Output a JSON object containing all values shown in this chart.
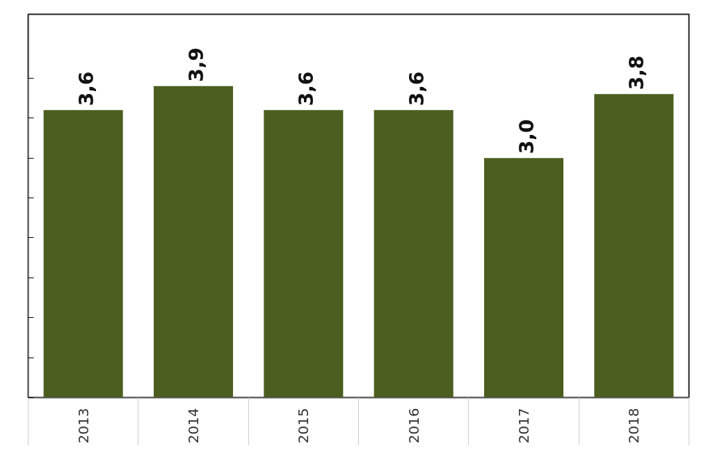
{
  "chart_data": {
    "type": "bar",
    "categories": [
      "2013",
      "2014",
      "2015",
      "2016",
      "2017",
      "2018"
    ],
    "values": [
      3.6,
      3.9,
      3.6,
      3.6,
      3.0,
      3.8
    ],
    "value_labels": [
      "3,6",
      "3,9",
      "3,6",
      "3,6",
      "3,0",
      "3,8"
    ],
    "color": "#4b5e1f",
    "ylim": [
      0,
      4
    ],
    "yticks": [
      {
        "value": 0,
        "label": null
      },
      {
        "value": 0.5,
        "label": null
      },
      {
        "value": 1,
        "label": null
      },
      {
        "value": 1.5,
        "label": null
      },
      {
        "value": 2,
        "label": null
      },
      {
        "value": 2.5,
        "label": null
      },
      {
        "value": 3,
        "label": null
      },
      {
        "value": 3.5,
        "label": null
      },
      {
        "value": 4,
        "label": null
      }
    ],
    "tick_labels": "x",
    "grid": false
  }
}
